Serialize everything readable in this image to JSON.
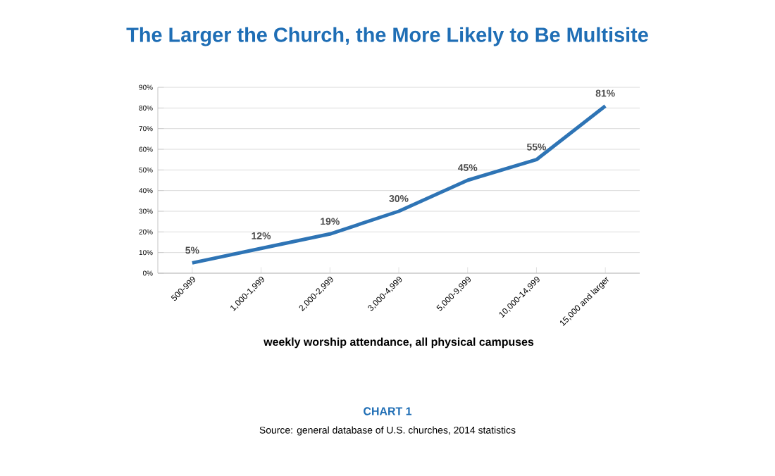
{
  "chart_data": {
    "type": "line",
    "title": "The Larger the Church, the More Likely to Be Multisite",
    "xlabel": "weekly worship attendance, all physical campuses",
    "categories": [
      "500-999",
      "1,000-1,999",
      "2,000-2,999",
      "3,000-4,999",
      "5,000-9,999",
      "10,000-14,999",
      "15,000 and larger"
    ],
    "values": [
      5,
      12,
      19,
      30,
      45,
      55,
      81
    ],
    "value_labels": [
      "5%",
      "12%",
      "19%",
      "30%",
      "45%",
      "55%",
      "81%"
    ],
    "color": "#2e74b5",
    "ylim": [
      0,
      90
    ],
    "yticks": [
      {
        "value": 0,
        "label": "0%"
      },
      {
        "value": 10,
        "label": "10%"
      },
      {
        "value": 20,
        "label": "20%"
      },
      {
        "value": 30,
        "label": "30%"
      },
      {
        "value": 40,
        "label": "40%"
      },
      {
        "value": 50,
        "label": "50%"
      },
      {
        "value": 60,
        "label": "60%"
      },
      {
        "value": 70,
        "label": "70%"
      },
      {
        "value": 80,
        "label": "80%"
      },
      {
        "value": 90,
        "label": "90%"
      }
    ],
    "grid": "y",
    "marker": "none",
    "line_style": "solid",
    "annotations": [
      "CHART 1",
      "Source: general database of U.S. churches, 2014 statistics"
    ]
  }
}
